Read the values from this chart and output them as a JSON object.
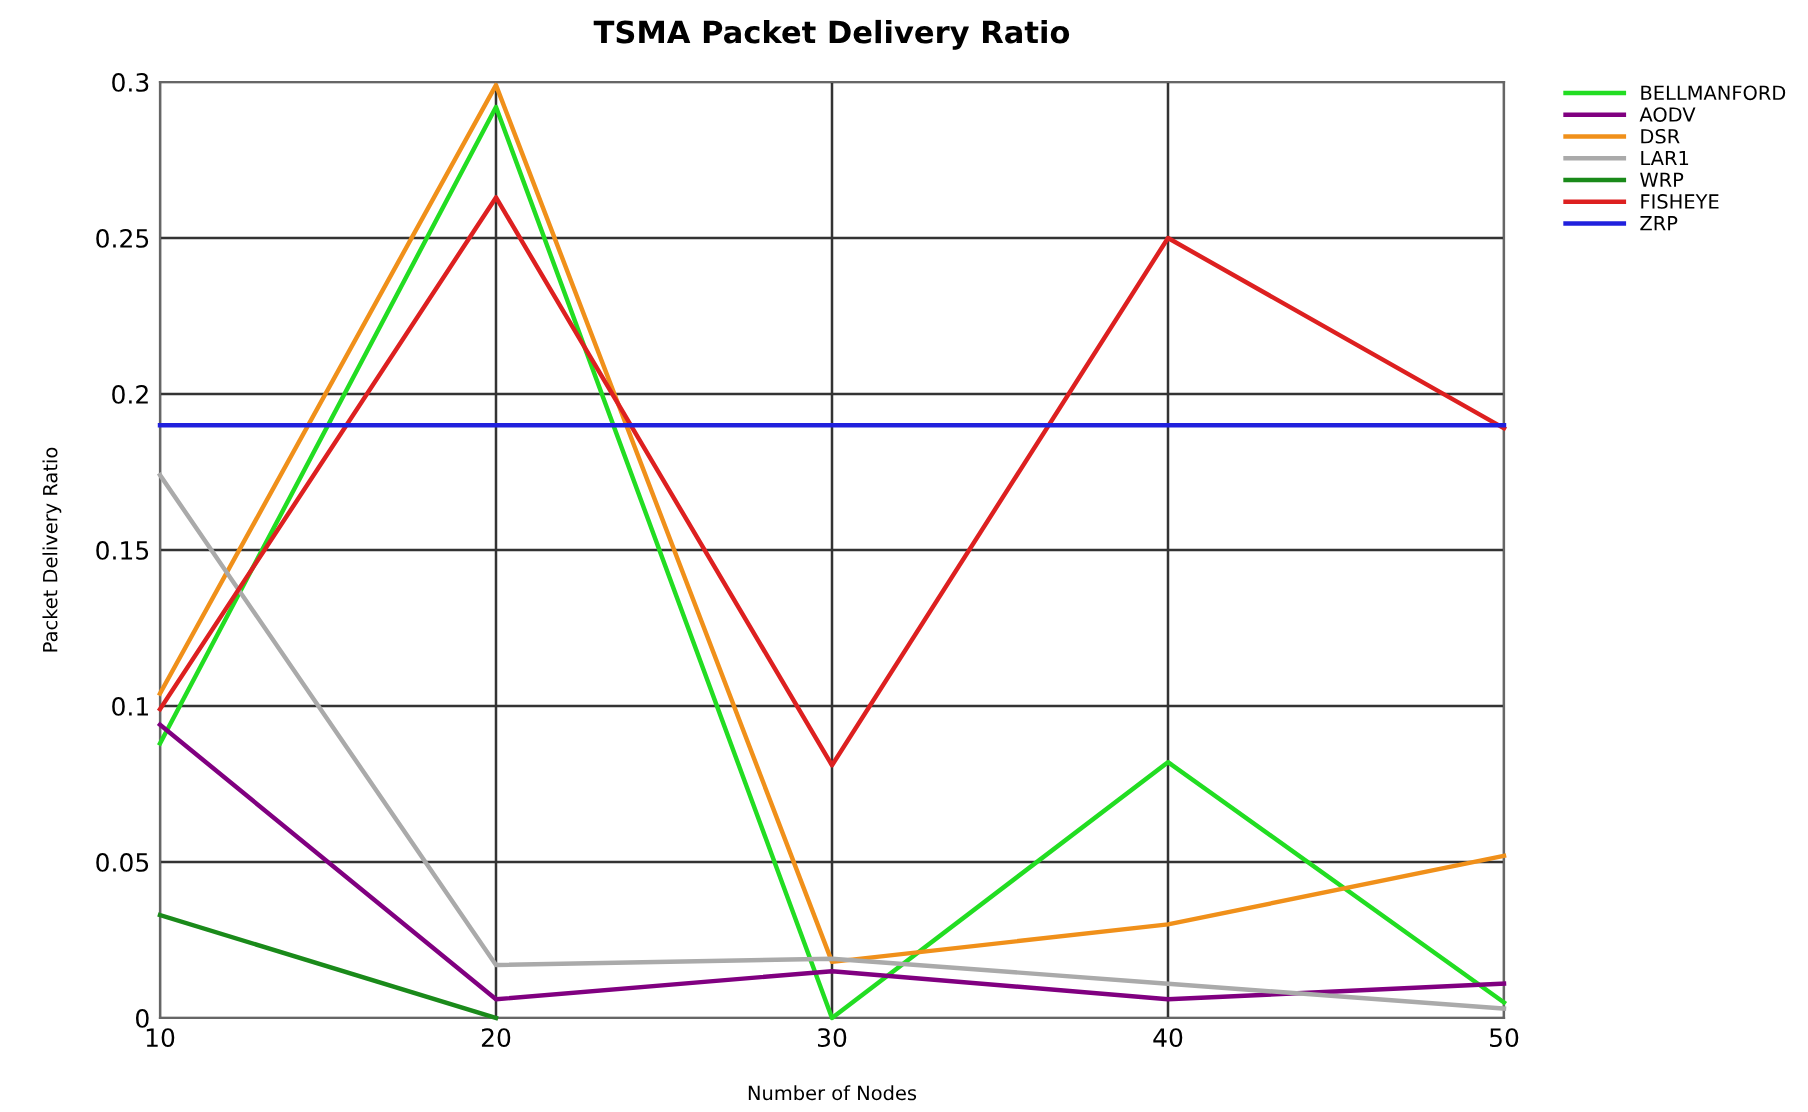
{
  "chart_data": {
    "type": "line",
    "title": "TSMA Packet Delivery Ratio",
    "xlabel": "Number of Nodes",
    "ylabel": "Packet Delivery Ratio",
    "x": [
      10,
      20,
      30,
      40,
      50
    ],
    "series": [
      {
        "name": "BELLMANFORD",
        "color": "#22dd22",
        "values": [
          0.088,
          0.292,
          0,
          0.082,
          0.005
        ]
      },
      {
        "name": "AODV",
        "color": "#800080",
        "values": [
          0.094,
          0.006,
          0.015,
          0.006,
          0.011
        ]
      },
      {
        "name": "DSR",
        "color": "#f0901a",
        "values": [
          0.104,
          0.299,
          0.018,
          0.03,
          0.052
        ]
      },
      {
        "name": "LAR1",
        "color": "#aaaaaa",
        "values": [
          0.174,
          0.017,
          0.019,
          0.011,
          0.003
        ]
      },
      {
        "name": "WRP",
        "color": "#1a8a1a",
        "values": [
          0.033,
          0,
          null,
          null,
          null
        ]
      },
      {
        "name": "FISHEYE",
        "color": "#dd2020",
        "values": [
          0.099,
          0.263,
          0.081,
          0.25,
          0.189
        ]
      },
      {
        "name": "ZRP",
        "color": "#2020dd",
        "values": [
          0.19,
          0.19,
          0.19,
          0.19,
          0.19
        ]
      }
    ],
    "xlim": [
      10,
      50
    ],
    "xticks": [
      10,
      20,
      30,
      40,
      50
    ],
    "ylim": [
      0,
      0.3
    ],
    "yticks": [
      0,
      0.05,
      0.1,
      0.15,
      0.2,
      0.25,
      0.3
    ],
    "grid": true,
    "legend": "top right",
    "marker": "none",
    "line_style": "solid"
  }
}
